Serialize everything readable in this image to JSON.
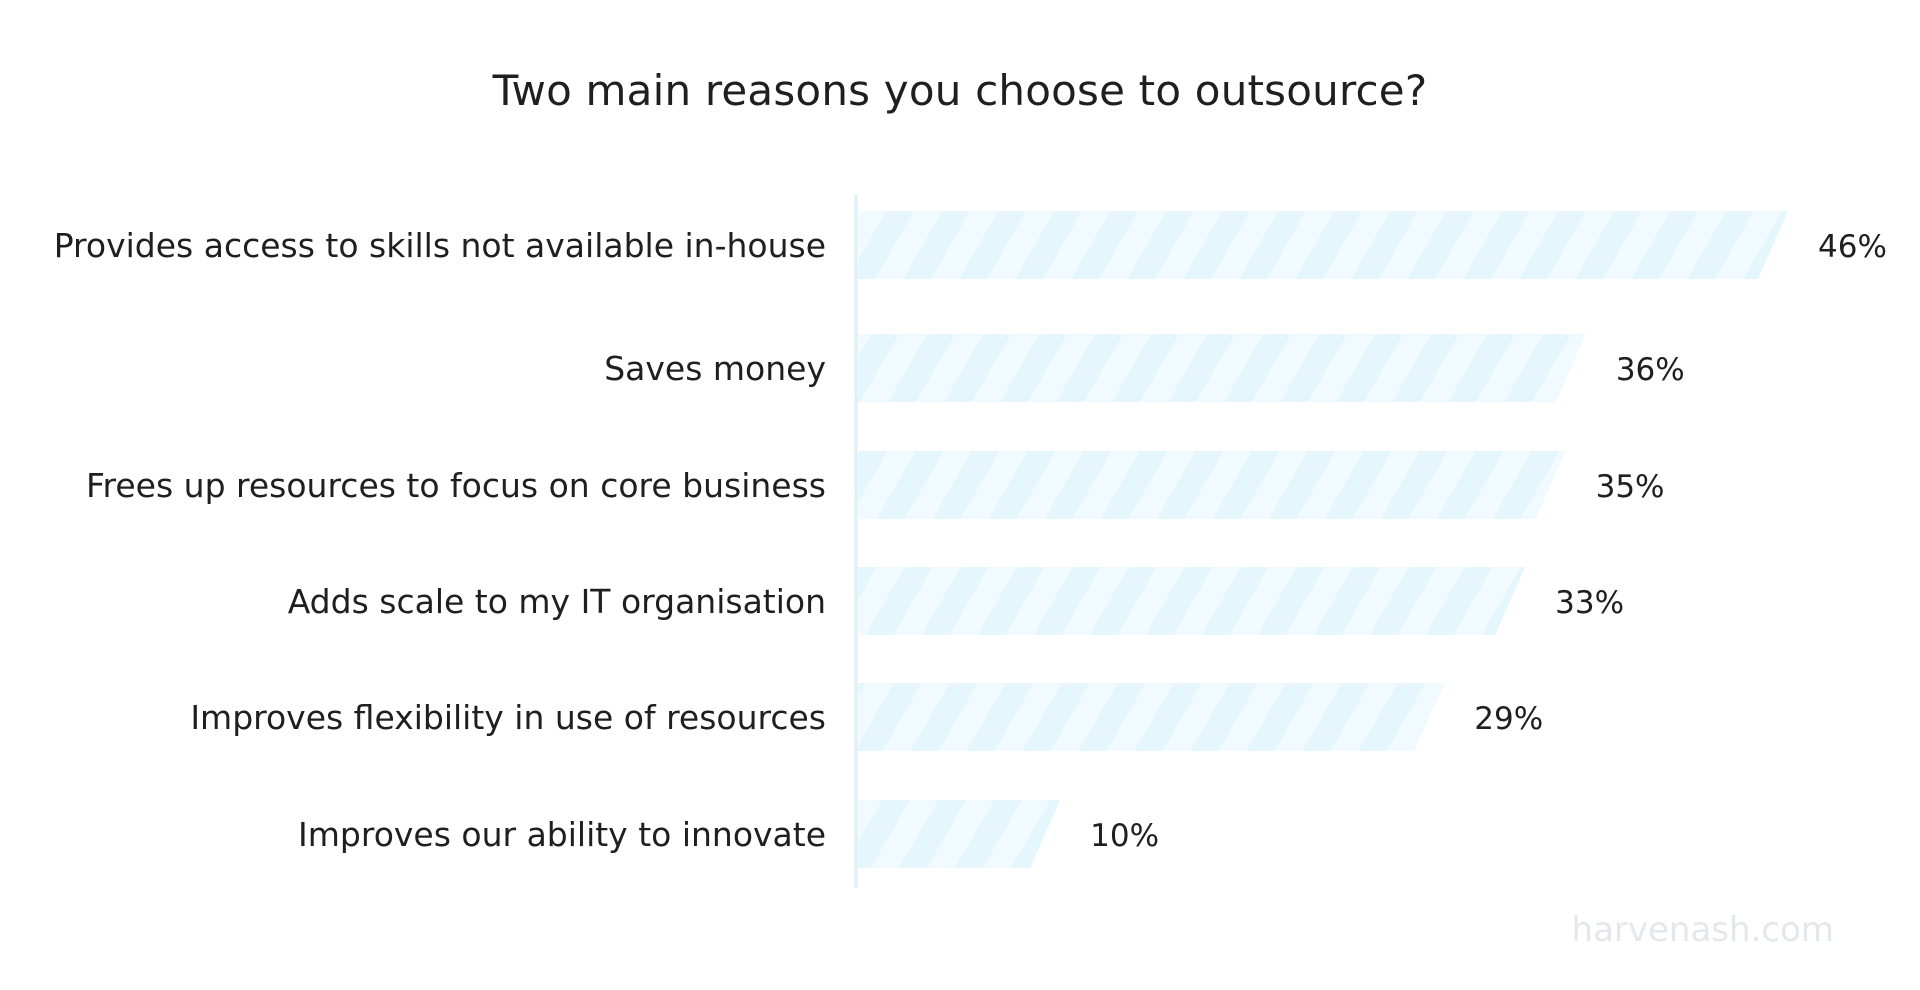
{
  "chart_data": {
    "type": "bar",
    "orientation": "horizontal",
    "title": "Two main reasons you choose to outsource?",
    "categories": [
      "Provides access to skills not available in-house",
      "Saves money",
      "Frees up resources to focus on core business",
      "Adds scale to my IT organisation",
      "Improves flexibility in use of resources",
      "Improves our ability to innovate"
    ],
    "values": [
      46,
      36,
      35,
      33,
      29,
      10
    ],
    "value_labels": [
      "46%",
      "36%",
      "35%",
      "33%",
      "29%",
      "10%"
    ],
    "xlim": [
      0,
      46
    ],
    "grid": false,
    "legend": "none",
    "colors": {
      "bar": "#e6f6fd",
      "bar_stripe": "#f1fafe",
      "axis": "#dceff8",
      "text": "#1f1f1f"
    }
  },
  "watermark": "harvenash.com"
}
